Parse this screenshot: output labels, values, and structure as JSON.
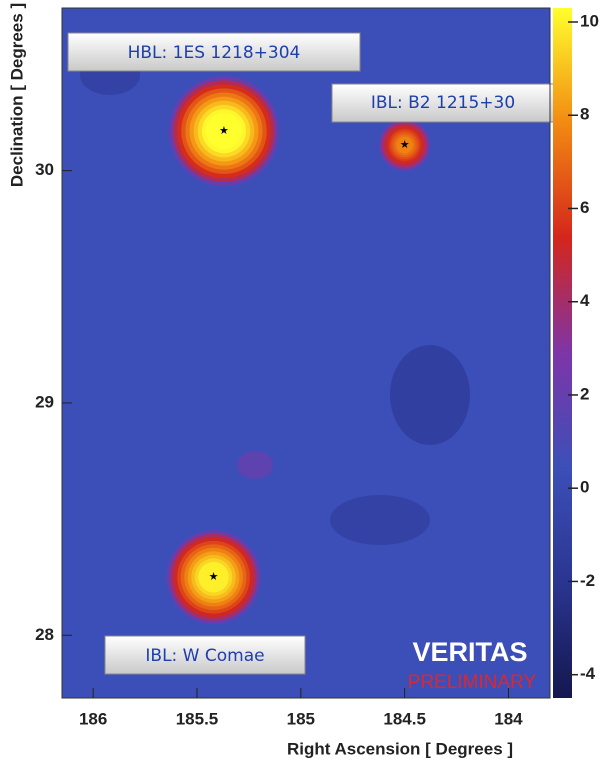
{
  "chart_data": {
    "type": "skymap",
    "xlabel": "Right Ascension [ Degrees ]",
    "ylabel": "Declination [ Degrees ]",
    "xlim": [
      186.15,
      183.8
    ],
    "xticks": [
      186,
      185.5,
      185,
      184.5,
      184
    ],
    "ylim": [
      27.73,
      30.7
    ],
    "yticks": [
      28,
      29,
      30
    ],
    "clim": [
      -4.5,
      10.3
    ],
    "cticks": [
      -4,
      -2,
      0,
      2,
      4,
      6,
      8,
      10
    ],
    "colormap": [
      "#14174f",
      "#2a3590",
      "#3c4fb8",
      "#7e35a8",
      "#d4261c",
      "#f28a12",
      "#ffff2e"
    ],
    "sources": [
      {
        "name": "HBL: 1ES 1218+304",
        "ra": 185.37,
        "dec": 30.17,
        "significance": 10.3
      },
      {
        "name": "IBL: B2 1215+30",
        "ra": 184.5,
        "dec": 30.11,
        "significance": 7
      },
      {
        "name": "IBL: W Comae",
        "ra": 185.42,
        "dec": 28.25,
        "significance": 9.5
      }
    ],
    "watermark": "VERITAS",
    "watermark_sub": "PRELIMINARY"
  }
}
